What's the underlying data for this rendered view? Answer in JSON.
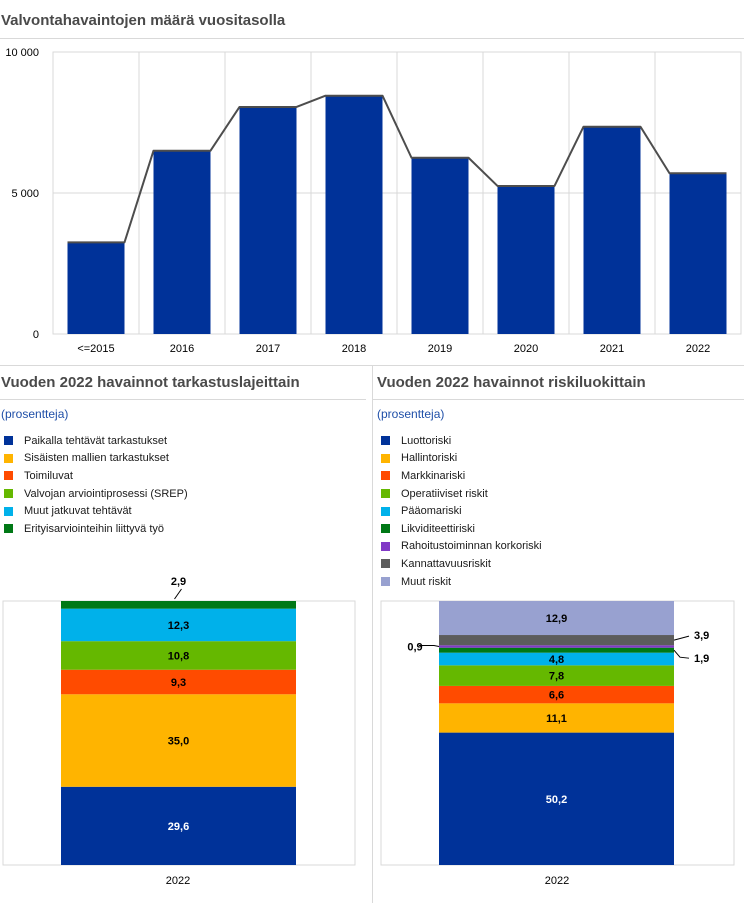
{
  "panel_top": {
    "title": "Valvontahavaintojen määrä vuositasolla"
  },
  "panel_left": {
    "title": "Vuoden 2022 havainnot tarkastuslajeittain",
    "subtitle": "(prosentteja)"
  },
  "panel_right": {
    "title": "Vuoden 2022 havainnot riskiluokittain",
    "subtitle": "(prosentteja)"
  },
  "chart_data": [
    {
      "type": "bar",
      "categories": [
        "<=2015",
        "2016",
        "2017",
        "2018",
        "2019",
        "2020",
        "2021",
        "2022"
      ],
      "values": [
        3250,
        6500,
        8050,
        8450,
        6250,
        5250,
        7350,
        5700
      ],
      "ylim": [
        0,
        10000
      ],
      "yticks": [
        0,
        5000,
        10000
      ],
      "ytick_labels": [
        "0",
        "5 000",
        "10 000"
      ],
      "grid": true,
      "line_overlay": true,
      "bar_color": "#003299",
      "line_color": "#4d4d4d"
    },
    {
      "type": "bar",
      "stacked": true,
      "categories": [
        "2022"
      ],
      "ylim": [
        0,
        100
      ],
      "legend_position": "top-left",
      "series": [
        {
          "name": "Paikalla tehtävät tarkastukset",
          "values": [
            29.6
          ],
          "label": "29,6",
          "color": "#003299",
          "label_color": "#ffffff"
        },
        {
          "name": "Sisäisten mallien tarkastukset",
          "values": [
            35.0
          ],
          "label": "35,0",
          "color": "#ffb400",
          "label_color": "#000000"
        },
        {
          "name": "Toimiluvat",
          "values": [
            9.3
          ],
          "label": "9,3",
          "color": "#ff4b00",
          "label_color": "#000000"
        },
        {
          "name": "Valvojan arviointiprosessi (SREP)",
          "values": [
            10.8
          ],
          "label": "10,8",
          "color": "#65b800",
          "label_color": "#000000"
        },
        {
          "name": "Muut jatkuvat tehtävät",
          "values": [
            12.3
          ],
          "label": "12,3",
          "color": "#00b1ea",
          "label_color": "#000000"
        },
        {
          "name": "Erityisarviointeihin liittyvä työ",
          "values": [
            2.9
          ],
          "label": "2,9",
          "color": "#007816",
          "label_color": "#000000",
          "callout": "top"
        }
      ]
    },
    {
      "type": "bar",
      "stacked": true,
      "categories": [
        "2022"
      ],
      "ylim": [
        0,
        100
      ],
      "legend_position": "top-left",
      "series": [
        {
          "name": "Luottoriski",
          "values": [
            50.2
          ],
          "label": "50,2",
          "color": "#003299",
          "label_color": "#ffffff"
        },
        {
          "name": "Hallintoriski",
          "values": [
            11.1
          ],
          "label": "11,1",
          "color": "#ffb400",
          "label_color": "#000000"
        },
        {
          "name": "Markkinariski",
          "values": [
            6.6
          ],
          "label": "6,6",
          "color": "#ff4b00",
          "label_color": "#000000"
        },
        {
          "name": "Operatiiviset riskit",
          "values": [
            7.8
          ],
          "label": "7,8",
          "color": "#65b800",
          "label_color": "#000000"
        },
        {
          "name": "Pääomariski",
          "values": [
            4.8
          ],
          "label": "4,8",
          "color": "#00b1ea",
          "label_color": "#000000"
        },
        {
          "name": "Likviditeettiriski",
          "values": [
            1.9
          ],
          "label": "1,9",
          "color": "#007816",
          "label_color": "#000000",
          "callout": "right-low"
        },
        {
          "name": "Rahoitustoiminnan korkoriski",
          "values": [
            0.9
          ],
          "label": "0,9",
          "color": "#8139c6",
          "label_color": "#000000",
          "callout": "left"
        },
        {
          "name": "Kannattavuusriskit",
          "values": [
            3.9
          ],
          "label": "3,9",
          "color": "#5c5c5c",
          "label_color": "#000000",
          "callout": "right-high"
        },
        {
          "name": "Muut riskit",
          "values": [
            12.9
          ],
          "label": "12,9",
          "color": "#98a1d0",
          "label_color": "#000000"
        }
      ]
    }
  ]
}
